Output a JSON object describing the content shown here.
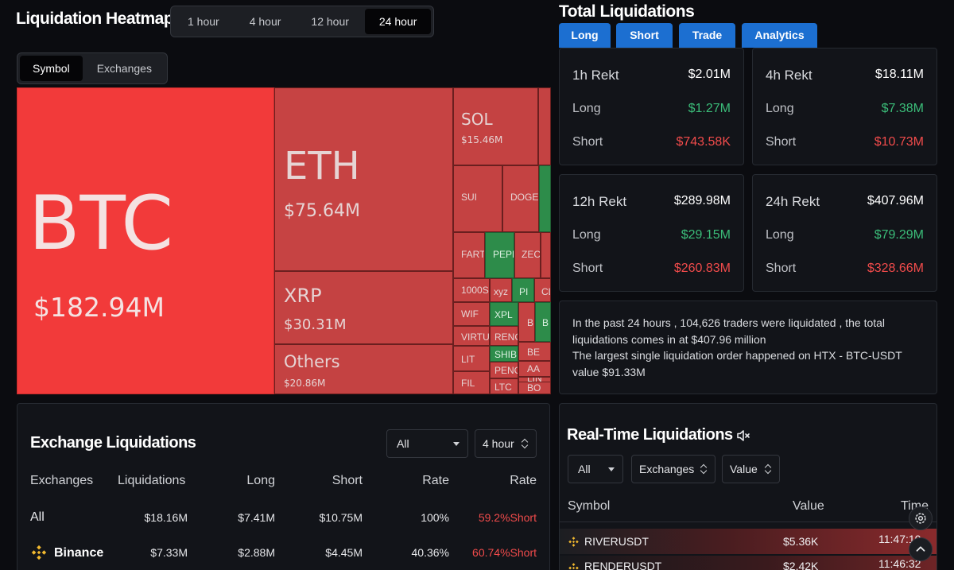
{
  "heatmap": {
    "title": "Liquidation Heatmap",
    "time_options": [
      "1 hour",
      "4 hour",
      "12 hour",
      "24 hour"
    ],
    "time_selected": "24 hour",
    "view_options": [
      "Symbol",
      "Exchanges"
    ],
    "view_selected": "Symbol",
    "tiles": {
      "btc": {
        "symbol": "BTC",
        "value": "$182.94M"
      },
      "eth": {
        "symbol": "ETH",
        "value": "$75.64M"
      },
      "xrp": {
        "symbol": "XRP",
        "value": "$30.31M"
      },
      "others": {
        "symbol": "Others",
        "value": "$20.86M"
      },
      "sol": {
        "symbol": "SOL",
        "value": "$15.46M"
      },
      "sui": {
        "symbol": "SUI"
      },
      "doge": {
        "symbol": "DOGE"
      },
      "fart": {
        "symbol": "FART"
      },
      "pepe": {
        "symbol": "PEPE"
      },
      "zec": {
        "symbol": "ZEC"
      },
      "s1000": {
        "symbol": "1000S"
      },
      "xyz": {
        "symbol": "xyz"
      },
      "pi": {
        "symbol": "PI"
      },
      "cl": {
        "symbol": "CL"
      },
      "wif": {
        "symbol": "WIF"
      },
      "xpl": {
        "symbol": "XPL"
      },
      "b1": {
        "symbol": "B"
      },
      "b2": {
        "symbol": "B"
      },
      "virtual": {
        "symbol": "VIRTU"
      },
      "render": {
        "symbol": "RENC"
      },
      "shib": {
        "symbol": "SHIB"
      },
      "be": {
        "symbol": "BE"
      },
      "lit": {
        "symbol": "LIT"
      },
      "aa": {
        "symbol": "AA"
      },
      "peng": {
        "symbol": "PENG"
      },
      "lin": {
        "symbol": "LIN"
      },
      "fil": {
        "symbol": "FIL"
      },
      "ltc": {
        "symbol": "LTC"
      },
      "bo": {
        "symbol": "BO"
      }
    }
  },
  "total": {
    "title": "Total Liquidations",
    "tabs": [
      "Long",
      "Short",
      "Trade",
      "Analytics"
    ],
    "boxes": [
      {
        "label": "1h Rekt",
        "total": "$2.01M",
        "long_label": "Long",
        "long": "$1.27M",
        "short_label": "Short",
        "short": "$743.58K"
      },
      {
        "label": "4h Rekt",
        "total": "$18.11M",
        "long_label": "Long",
        "long": "$7.38M",
        "short_label": "Short",
        "short": "$10.73M"
      },
      {
        "label": "12h Rekt",
        "total": "$289.98M",
        "long_label": "Long",
        "long": "$29.15M",
        "short_label": "Short",
        "short": "$260.83M"
      },
      {
        "label": "24h Rekt",
        "total": "$407.96M",
        "long_label": "Long",
        "long": "$79.29M",
        "short_label": "Short",
        "short": "$328.66M"
      }
    ],
    "summary_line1": "In the past 24 hours , 104,626 traders were liquidated , the total liquidations comes in at $407.96 million",
    "summary_line2": "The largest single liquidation order happened on HTX - BTC-USDT value $91.33M"
  },
  "exchange": {
    "title": "Exchange Liquidations",
    "filter_exchange": "All",
    "filter_time": "4 hour",
    "columns": [
      "Exchanges",
      "Liquidations",
      "Long",
      "Short",
      "Rate",
      "Rate"
    ],
    "rows": [
      {
        "name": "All",
        "liquidations": "$18.16M",
        "long": "$7.41M",
        "short": "$10.75M",
        "rate": "100%",
        "rate2": "59.2%Short"
      },
      {
        "name": "Binance",
        "liquidations": "$7.33M",
        "long": "$2.88M",
        "short": "$4.45M",
        "rate": "40.36%",
        "rate2": "60.74%Short"
      }
    ]
  },
  "realtime": {
    "title": "Real-Time Liquidations",
    "filter_all": "All",
    "filter_exchanges": "Exchanges",
    "filter_value": "Value",
    "columns": [
      "Symbol",
      "Value",
      "Time"
    ],
    "rows": [
      {
        "symbol": "RIVERUSDT",
        "value": "$5.36K",
        "time": "11:47:10"
      },
      {
        "symbol": "RENDERUSDT",
        "value": "$2.42K",
        "time": "11:46:32"
      }
    ]
  },
  "colors": {
    "long": "#3bbd79",
    "short": "#f14b4b",
    "accent": "#1c6fd1",
    "btc_tile": "#f23a3a"
  }
}
